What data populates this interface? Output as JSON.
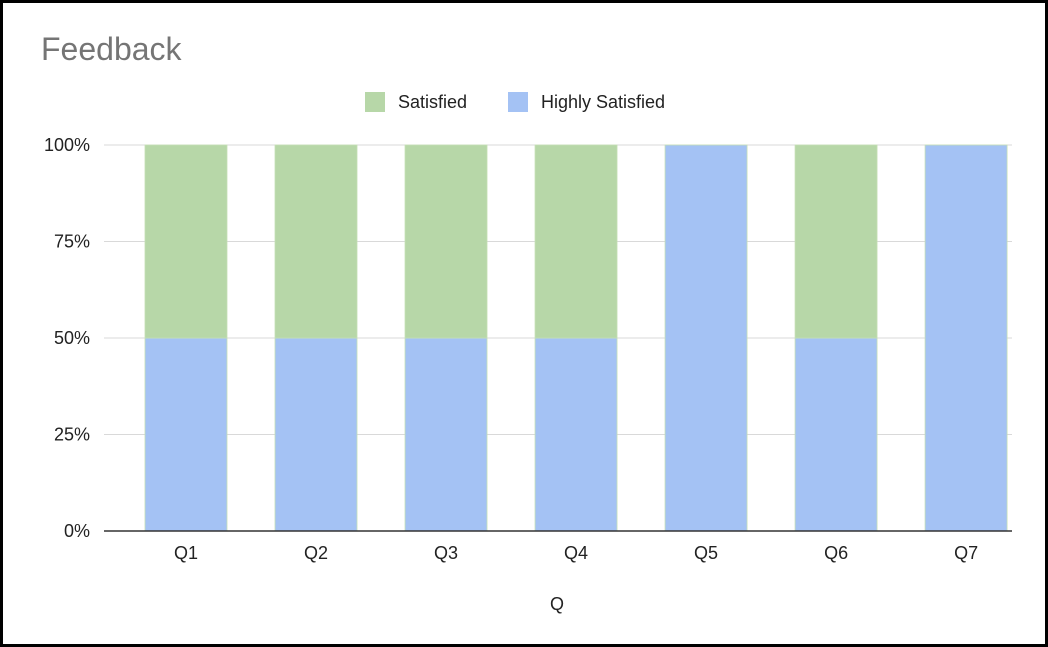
{
  "colors": {
    "satisfied": "#b7d7a8",
    "highly_satisfied": "#a4c2f4",
    "grid": "#d9d9d9",
    "axis": "#333333",
    "title": "#757575",
    "text": "#222222"
  },
  "chart_data": {
    "type": "bar",
    "stacked": true,
    "percent_stacked": true,
    "title": "Feedback",
    "xlabel": "Q",
    "ylabel": "",
    "categories": [
      "Q1",
      "Q2",
      "Q3",
      "Q4",
      "Q5",
      "Q6",
      "Q7"
    ],
    "series": [
      {
        "name": "Highly Satisfied",
        "color": "#a4c2f4",
        "values": [
          50,
          50,
          50,
          50,
          100,
          50,
          100
        ]
      },
      {
        "name": "Satisfied",
        "color": "#b7d7a8",
        "values": [
          50,
          50,
          50,
          50,
          0,
          50,
          0
        ]
      }
    ],
    "legend_order": [
      "Satisfied",
      "Highly Satisfied"
    ],
    "yticks": [
      "0%",
      "25%",
      "50%",
      "75%",
      "100%"
    ],
    "ylim": [
      0,
      100
    ],
    "grid": true,
    "legend_position": "top"
  }
}
